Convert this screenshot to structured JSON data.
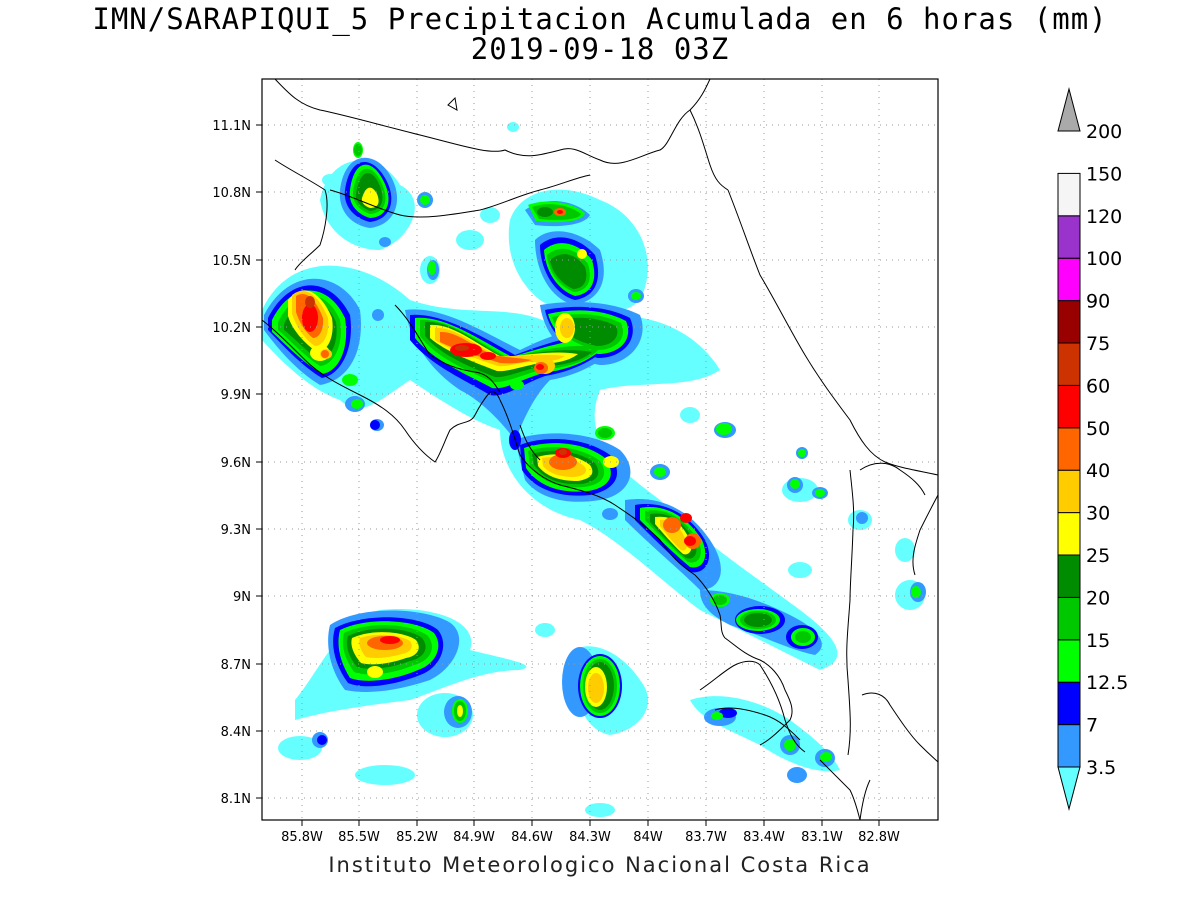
{
  "title": {
    "line1": "IMN/SARAPIQUI_5 Precipitacion Acumulada en 6 horas (mm)",
    "line2": "2019-09-18 03Z"
  },
  "footer": "Instituto Meteorologico Nacional Costa Rica",
  "axes": {
    "x_ticks": [
      "85.8W",
      "85.5W",
      "85.2W",
      "84.9W",
      "84.6W",
      "84.3W",
      "84W",
      "83.7W",
      "83.4W",
      "83.1W",
      "82.8W"
    ],
    "y_ticks": [
      "11.1N",
      "10.8N",
      "10.5N",
      "10.2N",
      "9.9N",
      "9.6N",
      "9.3N",
      "9N",
      "8.7N",
      "8.4N",
      "8.1N"
    ],
    "grid": "dotted"
  },
  "colorbar": {
    "units": "mm",
    "levels": [
      "3.5",
      "7",
      "12.5",
      "15",
      "20",
      "25",
      "30",
      "40",
      "50",
      "60",
      "75",
      "90",
      "100",
      "120",
      "150",
      "200"
    ],
    "colors": [
      "#66ffff",
      "#3399ff",
      "#0000ff",
      "#00ff00",
      "#00c800",
      "#008c00",
      "#ffff00",
      "#ffcc00",
      "#ff6600",
      "#ff0000",
      "#cc3300",
      "#990000",
      "#ff00ff",
      "#9933cc",
      "#f5f5f5",
      "#aaaaaa"
    ]
  }
}
